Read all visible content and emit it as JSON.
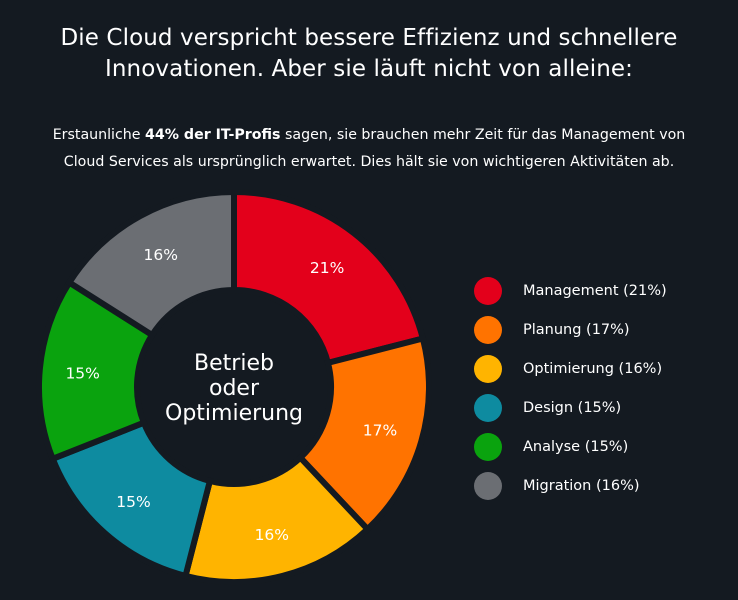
{
  "headline": {
    "line1": "Die Cloud verspricht bessere Effizienz und schnellere",
    "line2": "Innovationen. Aber sie läuft nicht von alleine:"
  },
  "intro": {
    "line1_prefix": "Erstaunliche ",
    "line1_bold": "44% der IT-Profis",
    "line1_suffix": " sagen, sie brauchen mehr Zeit für das Management von",
    "line2": "Cloud Services als ursprünglich erwartet. Dies hält sie von wichtigeren Aktivitäten ab."
  },
  "chart_data": {
    "type": "pie",
    "subtype": "donut",
    "center_label": [
      "Betrieb",
      "oder",
      "Optimierung"
    ],
    "categories": [
      "Management",
      "Planung",
      "Optimierung",
      "Design",
      "Analyse",
      "Migration"
    ],
    "values": [
      21,
      17,
      16,
      15,
      15,
      16
    ],
    "value_labels": [
      "21%",
      "17%",
      "16%",
      "15%",
      "15%",
      "16%"
    ],
    "colors": [
      "#e3001b",
      "#ff7300",
      "#ffb400",
      "#0e8ba0",
      "#0aa30e",
      "#6b6e73"
    ],
    "legend_labels": [
      "Management (21%)",
      "Planung (17%)",
      "Optimierung (16%)",
      "Design (15%)",
      "Analyse (15%)",
      "Migration (16%)"
    ],
    "legend_position": "right"
  }
}
